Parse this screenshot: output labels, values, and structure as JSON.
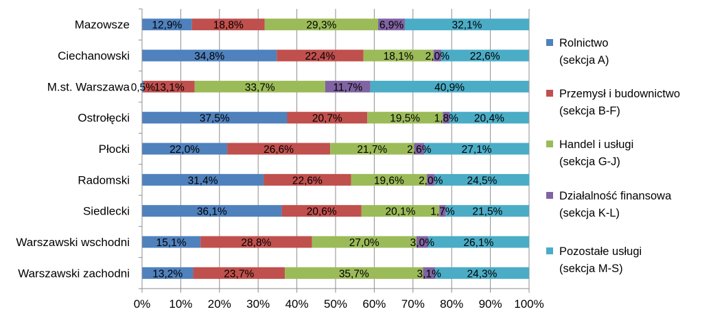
{
  "chart_data": {
    "type": "bar",
    "orientation": "horizontal",
    "stacked": "percent",
    "categories": [
      "Mazowsze",
      "Ciechanowski",
      "M.st. Warszawa",
      "Ostrołęcki",
      "Płocki",
      "Radomski",
      "Siedlecki",
      "Warszawski wschodni",
      "Warszawski zachodni"
    ],
    "series": [
      {
        "name": "Rolnictwo",
        "name2": "(sekcja A)",
        "color": "#4F81BD",
        "values": [
          12.9,
          34.8,
          0.5,
          37.5,
          22.0,
          31.4,
          36.1,
          15.1,
          13.2
        ],
        "labels": [
          "12,9%",
          "34,8%",
          "0,5%",
          "37,5%",
          "22,0%",
          "31,4%",
          "36,1%",
          "15,1%",
          "13,2%"
        ]
      },
      {
        "name": "Przemysł i budownictwo",
        "name2": "(sekcja B-F)",
        "color": "#C0504D",
        "values": [
          18.8,
          22.4,
          13.1,
          20.7,
          26.6,
          22.6,
          20.6,
          28.8,
          23.7
        ],
        "labels": [
          "18,8%",
          "22,4%",
          "13,1%",
          "20,7%",
          "26,6%",
          "22,6%",
          "20,6%",
          "28,8%",
          "23,7%"
        ]
      },
      {
        "name": "Handel i usługi",
        "name2": "(sekcja G-J)",
        "color": "#9BBB59",
        "values": [
          29.3,
          18.1,
          33.7,
          19.5,
          21.7,
          19.6,
          20.1,
          27.0,
          35.7
        ],
        "labels": [
          "29,3%",
          "18,1%",
          "33,7%",
          "19,5%",
          "21,7%",
          "19,6%",
          "20,1%",
          "27,0%",
          "35,7%"
        ]
      },
      {
        "name": "Działalność finansowa",
        "name2": "(sekcja K-L)",
        "color": "#8064A2",
        "values": [
          6.9,
          2.0,
          11.7,
          1.8,
          2.6,
          2.0,
          1.7,
          3.0,
          3.1
        ],
        "labels": [
          "6,9%",
          "2,0%",
          "11,7%",
          "1,8%",
          "2,6%",
          "2,0%",
          "1,7%",
          "3,0%",
          "3,1%"
        ]
      },
      {
        "name": "Pozostałe usługi",
        "name2": "(sekcja M-S)",
        "color": "#4BACC6",
        "values": [
          32.1,
          22.6,
          40.9,
          20.4,
          27.1,
          24.5,
          21.5,
          26.1,
          24.3
        ],
        "labels": [
          "32,1%",
          "22,6%",
          "40,9%",
          "20,4%",
          "27,1%",
          "24,5%",
          "21,5%",
          "26,1%",
          "24,3%"
        ]
      }
    ],
    "x_ticks": [
      "0%",
      "10%",
      "20%",
      "30%",
      "40%",
      "50%",
      "60%",
      "70%",
      "80%",
      "90%",
      "100%"
    ],
    "xlim": [
      0,
      100
    ],
    "grid": true,
    "legend_position": "right",
    "title": "",
    "xlabel": "",
    "ylabel": ""
  }
}
